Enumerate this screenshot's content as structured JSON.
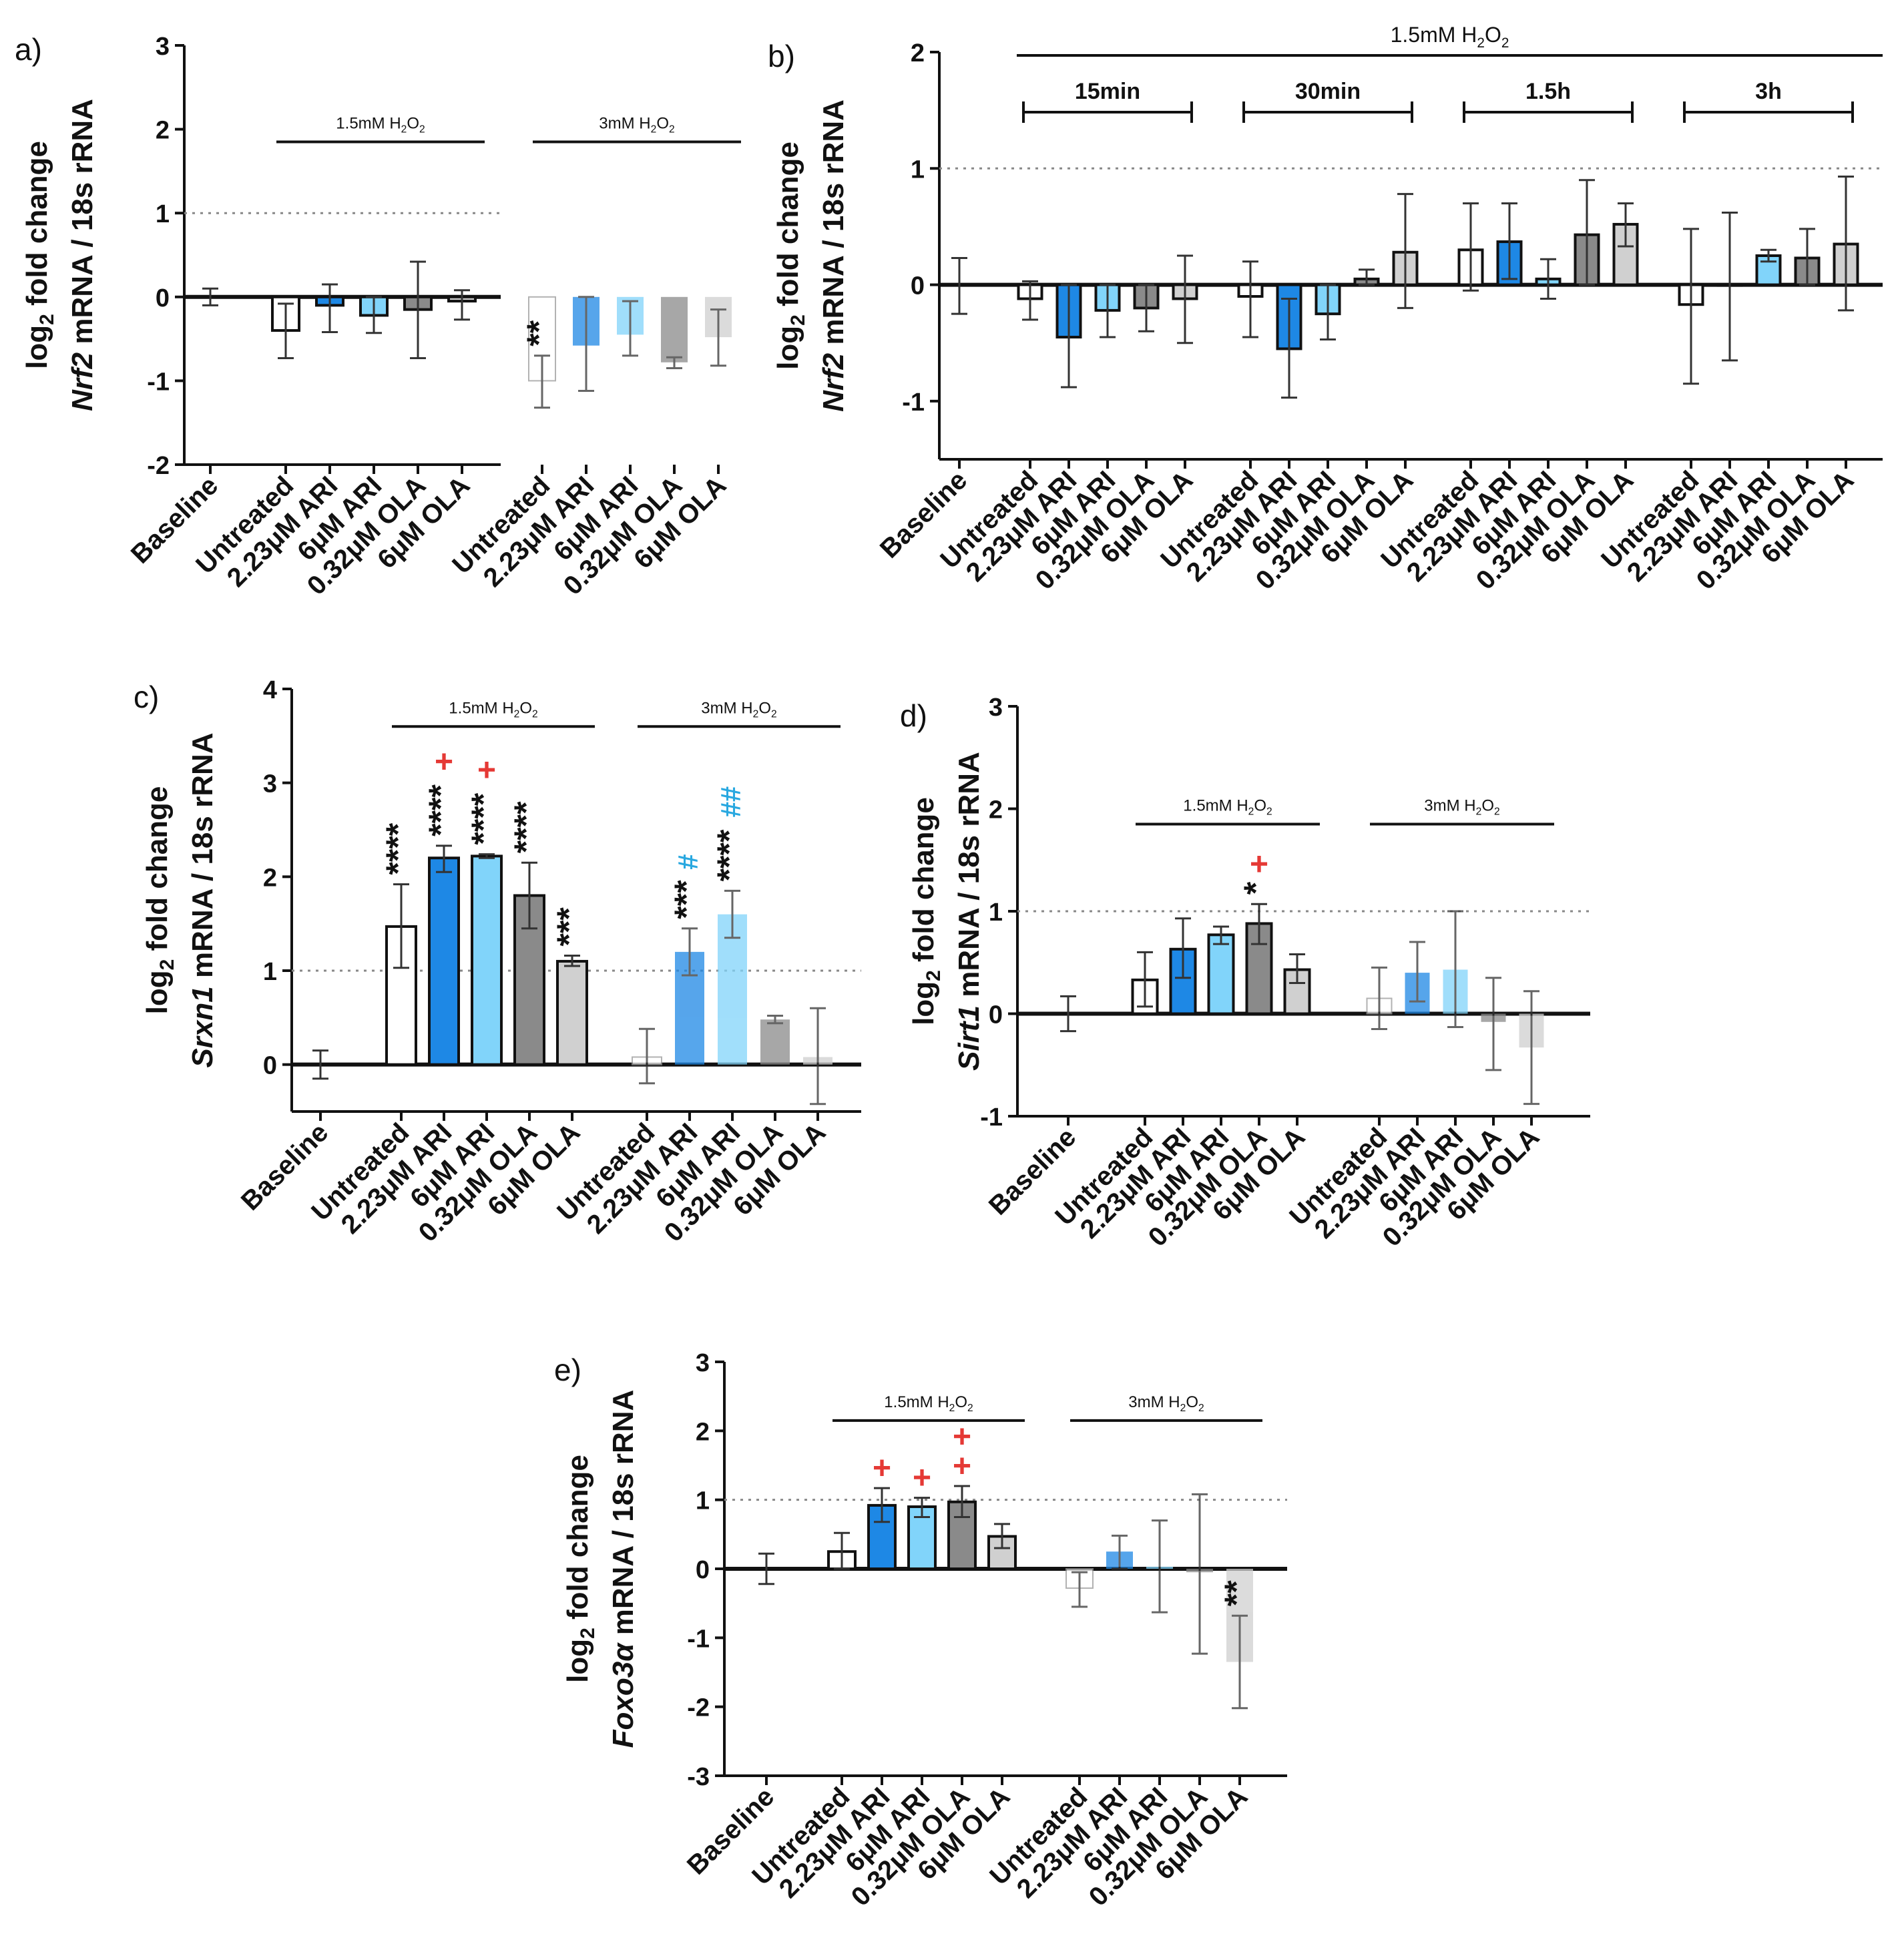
{
  "figure": {
    "y_axis_label_top": "log₂ fold change",
    "categories": [
      "Baseline",
      "Untreated",
      "2.23μM ARI",
      "6μM ARI",
      "0.32μM OLA",
      "6μM OLA"
    ],
    "colors": {
      "untreated": "#ffffff",
      "ari_low": "#1e88e5",
      "ari_high": "#81d4fa",
      "ola_low": "#8a8a8a",
      "ola_high": "#d0d0d0",
      "sig_star": "#111111",
      "sig_plus": "#e53935",
      "sig_hash": "#29a8e0"
    }
  },
  "chart_data": [
    {
      "panel": "a)",
      "type": "bar",
      "ylabel_gene": "Nrf2",
      "ylabel_rest": " mRNA / 18s rRNA",
      "ylim": [
        -2,
        3
      ],
      "yticks": [
        -2,
        -1,
        0,
        1,
        2,
        3
      ],
      "reference_line": 1,
      "groups": [
        {
          "label": "1.5mM H₂O₂",
          "from": 1,
          "to": 5
        },
        {
          "label": "3mM H₂O₂",
          "from": 6,
          "to": 10
        }
      ],
      "bars": [
        {
          "category": "Baseline",
          "value": 0,
          "err_low": -0.1,
          "err_high": 0.1,
          "color_key": "untreated",
          "faded": false
        },
        {
          "category": "Untreated",
          "value": -0.4,
          "err_low": -0.73,
          "err_high": -0.08,
          "color_key": "untreated",
          "faded": false
        },
        {
          "category": "2.23μM ARI",
          "value": -0.1,
          "err_low": -0.42,
          "err_high": 0.15,
          "color_key": "ari_low",
          "faded": false
        },
        {
          "category": "6μM ARI",
          "value": -0.22,
          "err_low": -0.43,
          "err_high": 0,
          "color_key": "ari_high",
          "faded": false
        },
        {
          "category": "0.32μM OLA",
          "value": -0.15,
          "err_low": -0.73,
          "err_high": 0.42,
          "color_key": "ola_low",
          "faded": false
        },
        {
          "category": "6μM OLA",
          "value": -0.05,
          "err_low": -0.27,
          "err_high": 0.08,
          "color_key": "ola_high",
          "faded": false
        },
        {
          "category": "Untreated",
          "value": -1.0,
          "err_low": -1.32,
          "err_high": -0.7,
          "color_key": "untreated",
          "faded": true,
          "sig": [
            {
              "text": "**",
              "color_key": "sig_star"
            }
          ]
        },
        {
          "category": "2.23μM ARI",
          "value": -0.58,
          "err_low": -1.12,
          "err_high": 0,
          "color_key": "ari_low",
          "faded": true
        },
        {
          "category": "6μM ARI",
          "value": -0.45,
          "err_low": -0.7,
          "err_high": -0.05,
          "color_key": "ari_high",
          "faded": true
        },
        {
          "category": "0.32μM OLA",
          "value": -0.78,
          "err_low": -0.85,
          "err_high": -0.72,
          "color_key": "ola_low",
          "faded": true
        },
        {
          "category": "6μM OLA",
          "value": -0.48,
          "err_low": -0.82,
          "err_high": -0.15,
          "color_key": "ola_high",
          "faded": true
        }
      ]
    },
    {
      "panel": "b)",
      "type": "bar",
      "ylabel_gene": "Nrf2",
      "ylabel_rest": " mRNA / 18s rRNA",
      "ylim": [
        -1.5,
        2
      ],
      "yticks": [
        -1,
        0,
        1,
        2
      ],
      "reference_line": 1,
      "top_group": {
        "label": "1.5mM H₂O₂",
        "from": 1,
        "to": 20
      },
      "groups": [
        {
          "label": "15min",
          "from": 1,
          "to": 5
        },
        {
          "label": "30min",
          "from": 6,
          "to": 10
        },
        {
          "label": "1.5h",
          "from": 11,
          "to": 15
        },
        {
          "label": "3h",
          "from": 16,
          "to": 20
        }
      ],
      "bars": [
        {
          "category": "Baseline",
          "value": 0,
          "err_low": -0.25,
          "err_high": 0.23,
          "color_key": "untreated",
          "faded": false
        },
        {
          "category": "Untreated",
          "value": -0.12,
          "err_low": -0.3,
          "err_high": 0.03,
          "color_key": "untreated",
          "faded": false
        },
        {
          "category": "2.23μM ARI",
          "value": -0.45,
          "err_low": -0.88,
          "err_high": 0,
          "color_key": "ari_low",
          "faded": false
        },
        {
          "category": "6μM ARI",
          "value": -0.22,
          "err_low": -0.45,
          "err_high": 0,
          "color_key": "ari_high",
          "faded": false
        },
        {
          "category": "0.32μM OLA",
          "value": -0.2,
          "err_low": -0.4,
          "err_high": 0,
          "color_key": "ola_low",
          "faded": false
        },
        {
          "category": "6μM OLA",
          "value": -0.12,
          "err_low": -0.5,
          "err_high": 0.25,
          "color_key": "ola_high",
          "faded": false
        },
        {
          "category": "Untreated",
          "value": -0.1,
          "err_low": -0.45,
          "err_high": 0.2,
          "color_key": "untreated",
          "faded": false
        },
        {
          "category": "2.23μM ARI",
          "value": -0.55,
          "err_low": -0.97,
          "err_high": -0.12,
          "color_key": "ari_low",
          "faded": false
        },
        {
          "category": "6μM ARI",
          "value": -0.25,
          "err_low": -0.47,
          "err_high": 0,
          "color_key": "ari_high",
          "faded": false
        },
        {
          "category": "0.32μM OLA",
          "value": 0.05,
          "err_low": 0,
          "err_high": 0.13,
          "color_key": "ola_low",
          "faded": false
        },
        {
          "category": "6μM OLA",
          "value": 0.28,
          "err_low": -0.2,
          "err_high": 0.78,
          "color_key": "ola_high",
          "faded": false
        },
        {
          "category": "Untreated",
          "value": 0.3,
          "err_low": -0.05,
          "err_high": 0.7,
          "color_key": "untreated",
          "faded": false
        },
        {
          "category": "2.23μM ARI",
          "value": 0.37,
          "err_low": 0.05,
          "err_high": 0.7,
          "color_key": "ari_low",
          "faded": false
        },
        {
          "category": "6μM ARI",
          "value": 0.05,
          "err_low": -0.12,
          "err_high": 0.22,
          "color_key": "ari_high",
          "faded": false
        },
        {
          "category": "0.32μM OLA",
          "value": 0.43,
          "err_low": 0,
          "err_high": 0.9,
          "color_key": "ola_low",
          "faded": false
        },
        {
          "category": "6μM OLA",
          "value": 0.52,
          "err_low": 0.33,
          "err_high": 0.7,
          "color_key": "ola_high",
          "faded": false
        },
        {
          "category": "Untreated",
          "value": -0.17,
          "err_low": -0.85,
          "err_high": 0.48,
          "color_key": "untreated",
          "faded": false
        },
        {
          "category": "2.23μM ARI",
          "value": 0,
          "err_low": -0.65,
          "err_high": 0.62,
          "color_key": "ari_low",
          "faded": false
        },
        {
          "category": "6μM ARI",
          "value": 0.25,
          "err_low": 0.2,
          "err_high": 0.3,
          "color_key": "ari_high",
          "faded": false
        },
        {
          "category": "0.32μM OLA",
          "value": 0.23,
          "err_low": 0,
          "err_high": 0.48,
          "color_key": "ola_low",
          "faded": false
        },
        {
          "category": "6μM OLA",
          "value": 0.35,
          "err_low": -0.22,
          "err_high": 0.93,
          "color_key": "ola_high",
          "faded": false
        }
      ]
    },
    {
      "panel": "c)",
      "type": "bar",
      "ylabel_gene": "Srxn1",
      "ylabel_rest": " mRNA / 18s rRNA",
      "ylim": [
        -0.5,
        4
      ],
      "yticks": [
        0,
        1,
        2,
        3,
        4
      ],
      "reference_line": 1,
      "groups": [
        {
          "label": "1.5mM H₂O₂",
          "from": 1,
          "to": 5
        },
        {
          "label": "3mM H₂O₂",
          "from": 6,
          "to": 10
        }
      ],
      "bars": [
        {
          "category": "Baseline",
          "value": 0,
          "err_low": -0.15,
          "err_high": 0.15,
          "color_key": "untreated",
          "faded": false
        },
        {
          "category": "Untreated",
          "value": 1.47,
          "err_low": 1.03,
          "err_high": 1.92,
          "color_key": "untreated",
          "faded": false,
          "sig": [
            {
              "text": "****",
              "color_key": "sig_star"
            }
          ]
        },
        {
          "category": "2.23μM ARI",
          "value": 2.2,
          "err_low": 2.05,
          "err_high": 2.33,
          "color_key": "ari_low",
          "faded": false,
          "sig": [
            {
              "text": "****",
              "color_key": "sig_star"
            },
            {
              "text": "+",
              "color_key": "sig_plus"
            }
          ]
        },
        {
          "category": "6μM ARI",
          "value": 2.22,
          "err_low": 2.2,
          "err_high": 2.24,
          "color_key": "ari_high",
          "faded": false,
          "sig": [
            {
              "text": "****",
              "color_key": "sig_star"
            },
            {
              "text": "+",
              "color_key": "sig_plus"
            }
          ]
        },
        {
          "category": "0.32μM OLA",
          "value": 1.8,
          "err_low": 1.45,
          "err_high": 2.15,
          "color_key": "ola_low",
          "faded": false,
          "sig": [
            {
              "text": "****",
              "color_key": "sig_star"
            }
          ]
        },
        {
          "category": "6μM OLA",
          "value": 1.1,
          "err_low": 1.05,
          "err_high": 1.16,
          "color_key": "ola_high",
          "faded": false,
          "sig": [
            {
              "text": "***",
              "color_key": "sig_star"
            }
          ]
        },
        {
          "category": "Untreated",
          "value": 0.08,
          "err_low": -0.2,
          "err_high": 0.38,
          "color_key": "untreated",
          "faded": true
        },
        {
          "category": "2.23μM ARI",
          "value": 1.2,
          "err_low": 0.95,
          "err_high": 1.45,
          "color_key": "ari_low",
          "faded": true,
          "sig": [
            {
              "text": "***",
              "color_key": "sig_star"
            },
            {
              "text": "#",
              "color_key": "sig_hash"
            }
          ]
        },
        {
          "category": "6μM ARI",
          "value": 1.6,
          "err_low": 1.35,
          "err_high": 1.85,
          "color_key": "ari_high",
          "faded": true,
          "sig": [
            {
              "text": "****",
              "color_key": "sig_star"
            },
            {
              "text": "##",
              "color_key": "sig_hash"
            }
          ]
        },
        {
          "category": "0.32μM OLA",
          "value": 0.48,
          "err_low": 0.44,
          "err_high": 0.52,
          "color_key": "ola_low",
          "faded": true
        },
        {
          "category": "6μM OLA",
          "value": 0.08,
          "err_low": -0.42,
          "err_high": 0.6,
          "color_key": "ola_high",
          "faded": true
        }
      ]
    },
    {
      "panel": "d)",
      "type": "bar",
      "ylabel_gene": "Sirt1",
      "ylabel_rest": " mRNA / 18s rRNA",
      "ylim": [
        -1,
        3
      ],
      "yticks": [
        -1,
        0,
        1,
        2,
        3
      ],
      "reference_line": 1,
      "groups": [
        {
          "label": "1.5mM H₂O₂",
          "from": 1,
          "to": 5
        },
        {
          "label": "3mM H₂O₂",
          "from": 6,
          "to": 10
        }
      ],
      "bars": [
        {
          "category": "Baseline",
          "value": 0,
          "err_low": -0.17,
          "err_high": 0.17,
          "color_key": "untreated",
          "faded": false
        },
        {
          "category": "Untreated",
          "value": 0.33,
          "err_low": 0.07,
          "err_high": 0.6,
          "color_key": "untreated",
          "faded": false
        },
        {
          "category": "2.23μM ARI",
          "value": 0.63,
          "err_low": 0.35,
          "err_high": 0.93,
          "color_key": "ari_low",
          "faded": false
        },
        {
          "category": "6μM ARI",
          "value": 0.77,
          "err_low": 0.68,
          "err_high": 0.85,
          "color_key": "ari_high",
          "faded": false
        },
        {
          "category": "0.32μM OLA",
          "value": 0.88,
          "err_low": 0.68,
          "err_high": 1.07,
          "color_key": "ola_low",
          "faded": false,
          "sig": [
            {
              "text": "*",
              "color_key": "sig_star"
            },
            {
              "text": "+",
              "color_key": "sig_plus"
            }
          ]
        },
        {
          "category": "6μM OLA",
          "value": 0.43,
          "err_low": 0.3,
          "err_high": 0.58,
          "color_key": "ola_high",
          "faded": false
        },
        {
          "category": "Untreated",
          "value": 0.15,
          "err_low": -0.15,
          "err_high": 0.45,
          "color_key": "untreated",
          "faded": true
        },
        {
          "category": "2.23μM ARI",
          "value": 0.4,
          "err_low": 0.12,
          "err_high": 0.7,
          "color_key": "ari_low",
          "faded": true
        },
        {
          "category": "6μM ARI",
          "value": 0.43,
          "err_low": -0.13,
          "err_high": 1.0,
          "color_key": "ari_high",
          "faded": true
        },
        {
          "category": "0.32μM OLA",
          "value": -0.08,
          "err_low": -0.55,
          "err_high": 0.35,
          "color_key": "ola_low",
          "faded": true
        },
        {
          "category": "6μM OLA",
          "value": -0.33,
          "err_low": -0.88,
          "err_high": 0.22,
          "color_key": "ola_high",
          "faded": true
        }
      ]
    },
    {
      "panel": "e)",
      "type": "bar",
      "ylabel_gene": "Foxo3α",
      "ylabel_rest": " mRNA / 18s rRNA",
      "ylim": [
        -3,
        3
      ],
      "yticks": [
        -3,
        -2,
        -1,
        0,
        1,
        2,
        3
      ],
      "reference_line": 1,
      "groups": [
        {
          "label": "1.5mM H₂O₂",
          "from": 1,
          "to": 5
        },
        {
          "label": "3mM H₂O₂",
          "from": 6,
          "to": 10
        }
      ],
      "bars": [
        {
          "category": "Baseline",
          "value": 0,
          "err_low": -0.22,
          "err_high": 0.22,
          "color_key": "untreated",
          "faded": false
        },
        {
          "category": "Untreated",
          "value": 0.25,
          "err_low": 0,
          "err_high": 0.52,
          "color_key": "untreated",
          "faded": false
        },
        {
          "category": "2.23μM ARI",
          "value": 0.92,
          "err_low": 0.68,
          "err_high": 1.17,
          "color_key": "ari_low",
          "faded": false,
          "sig": [
            {
              "text": "+",
              "color_key": "sig_plus"
            }
          ]
        },
        {
          "category": "6μM ARI",
          "value": 0.9,
          "err_low": 0.75,
          "err_high": 1.03,
          "color_key": "ari_high",
          "faded": false,
          "sig": [
            {
              "text": "+",
              "color_key": "sig_plus"
            }
          ]
        },
        {
          "category": "0.32μM OLA",
          "value": 0.97,
          "err_low": 0.75,
          "err_high": 1.2,
          "color_key": "ola_low",
          "faded": false,
          "sig": [
            {
              "text": "+",
              "color_key": "sig_plus"
            },
            {
              "text": "+",
              "color_key": "sig_plus"
            }
          ]
        },
        {
          "category": "6μM OLA",
          "value": 0.47,
          "err_low": 0.3,
          "err_high": 0.65,
          "color_key": "ola_high",
          "faded": false
        },
        {
          "category": "Untreated",
          "value": -0.28,
          "err_low": -0.55,
          "err_high": -0.05,
          "color_key": "untreated",
          "faded": true
        },
        {
          "category": "2.23μM ARI",
          "value": 0.25,
          "err_low": 0,
          "err_high": 0.48,
          "color_key": "ari_low",
          "faded": true
        },
        {
          "category": "6μM ARI",
          "value": 0.03,
          "err_low": -0.63,
          "err_high": 0.7,
          "color_key": "ari_high",
          "faded": true
        },
        {
          "category": "0.32μM OLA",
          "value": -0.05,
          "err_low": -1.23,
          "err_high": 1.08,
          "color_key": "ola_low",
          "faded": true
        },
        {
          "category": "6μM OLA",
          "value": -1.35,
          "err_low": -2.02,
          "err_high": -0.68,
          "color_key": "ola_high",
          "faded": true,
          "sig": [
            {
              "text": "**",
              "color_key": "sig_star"
            }
          ]
        }
      ]
    }
  ]
}
